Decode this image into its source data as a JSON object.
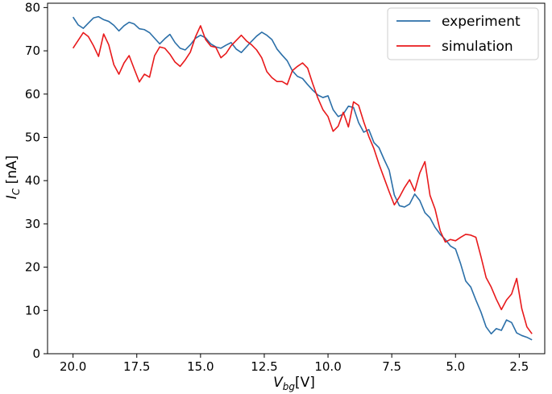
{
  "chart_data": {
    "type": "line",
    "title": "",
    "xlabel": {
      "main": "V",
      "sub": "bg",
      "unit": "[V]"
    },
    "ylabel": {
      "main": "I",
      "sub": "C",
      "unit": " [nA]"
    },
    "xlim": [
      21.0,
      1.5
    ],
    "ylim": [
      0,
      81
    ],
    "x_reversed": true,
    "x_ticks": [
      20.0,
      17.5,
      15.0,
      12.5,
      10.0,
      7.5,
      5.0,
      2.5
    ],
    "x_tick_labels": [
      "20.0",
      "17.5",
      "15.0",
      "12.5",
      "10.0",
      "7.5",
      "5.0",
      "2.5"
    ],
    "y_ticks": [
      0,
      10,
      20,
      30,
      40,
      50,
      60,
      70,
      80
    ],
    "y_tick_labels": [
      "0",
      "10",
      "20",
      "30",
      "40",
      "50",
      "60",
      "70",
      "80"
    ],
    "grid": false,
    "legend_position": "top-right",
    "series": [
      {
        "name": "experiment",
        "color": "#2b6fa8",
        "points": [
          [
            20.0,
            77.8
          ],
          [
            19.8,
            76.0
          ],
          [
            19.6,
            75.2
          ],
          [
            19.4,
            76.4
          ],
          [
            19.2,
            77.6
          ],
          [
            19.0,
            77.9
          ],
          [
            18.8,
            77.2
          ],
          [
            18.6,
            76.8
          ],
          [
            18.4,
            75.9
          ],
          [
            18.2,
            74.6
          ],
          [
            18.0,
            75.8
          ],
          [
            17.8,
            76.6
          ],
          [
            17.6,
            76.2
          ],
          [
            17.4,
            75.1
          ],
          [
            17.2,
            74.9
          ],
          [
            17.0,
            74.2
          ],
          [
            16.8,
            72.9
          ],
          [
            16.6,
            71.6
          ],
          [
            16.4,
            72.8
          ],
          [
            16.2,
            73.8
          ],
          [
            16.0,
            71.9
          ],
          [
            15.8,
            70.6
          ],
          [
            15.6,
            70.2
          ],
          [
            15.4,
            71.4
          ],
          [
            15.2,
            72.9
          ],
          [
            15.0,
            73.6
          ],
          [
            14.8,
            73.0
          ],
          [
            14.6,
            71.6
          ],
          [
            14.4,
            70.9
          ],
          [
            14.2,
            70.6
          ],
          [
            14.0,
            71.3
          ],
          [
            13.8,
            71.9
          ],
          [
            13.6,
            70.4
          ],
          [
            13.4,
            69.6
          ],
          [
            13.2,
            70.9
          ],
          [
            13.0,
            72.2
          ],
          [
            12.8,
            73.4
          ],
          [
            12.6,
            74.3
          ],
          [
            12.4,
            73.6
          ],
          [
            12.2,
            72.6
          ],
          [
            12.0,
            70.4
          ],
          [
            11.8,
            69.0
          ],
          [
            11.6,
            67.7
          ],
          [
            11.4,
            65.4
          ],
          [
            11.2,
            64.1
          ],
          [
            11.0,
            63.6
          ],
          [
            10.8,
            62.2
          ],
          [
            10.6,
            60.9
          ],
          [
            10.4,
            59.8
          ],
          [
            10.2,
            59.2
          ],
          [
            10.0,
            59.6
          ],
          [
            9.8,
            56.4
          ],
          [
            9.6,
            54.8
          ],
          [
            9.4,
            55.4
          ],
          [
            9.2,
            57.2
          ],
          [
            9.0,
            56.9
          ],
          [
            8.8,
            53.4
          ],
          [
            8.6,
            51.2
          ],
          [
            8.4,
            51.8
          ],
          [
            8.2,
            48.8
          ],
          [
            8.0,
            47.6
          ],
          [
            7.8,
            44.9
          ],
          [
            7.6,
            42.4
          ],
          [
            7.4,
            36.7
          ],
          [
            7.2,
            34.2
          ],
          [
            7.0,
            33.9
          ],
          [
            6.8,
            34.6
          ],
          [
            6.6,
            36.9
          ],
          [
            6.4,
            35.4
          ],
          [
            6.2,
            32.6
          ],
          [
            6.0,
            31.4
          ],
          [
            5.8,
            29.2
          ],
          [
            5.6,
            27.6
          ],
          [
            5.4,
            26.4
          ],
          [
            5.2,
            24.9
          ],
          [
            5.0,
            24.2
          ],
          [
            4.8,
            20.8
          ],
          [
            4.6,
            16.8
          ],
          [
            4.4,
            15.4
          ],
          [
            4.2,
            12.4
          ],
          [
            4.0,
            9.6
          ],
          [
            3.8,
            6.2
          ],
          [
            3.6,
            4.6
          ],
          [
            3.4,
            5.8
          ],
          [
            3.2,
            5.4
          ],
          [
            3.0,
            7.8
          ],
          [
            2.8,
            7.2
          ],
          [
            2.6,
            4.8
          ],
          [
            2.4,
            4.2
          ],
          [
            2.2,
            3.8
          ],
          [
            2.0,
            3.2
          ]
        ]
      },
      {
        "name": "simulation",
        "color": "#e8191b",
        "points": [
          [
            20.0,
            70.6
          ],
          [
            19.8,
            72.4
          ],
          [
            19.6,
            74.2
          ],
          [
            19.4,
            73.3
          ],
          [
            19.2,
            71.2
          ],
          [
            19.0,
            68.7
          ],
          [
            18.8,
            73.9
          ],
          [
            18.6,
            71.4
          ],
          [
            18.4,
            66.8
          ],
          [
            18.2,
            64.6
          ],
          [
            18.0,
            67.2
          ],
          [
            17.8,
            68.9
          ],
          [
            17.6,
            65.8
          ],
          [
            17.4,
            62.8
          ],
          [
            17.2,
            64.6
          ],
          [
            17.0,
            63.9
          ],
          [
            16.8,
            68.9
          ],
          [
            16.6,
            70.9
          ],
          [
            16.4,
            70.6
          ],
          [
            16.2,
            69.2
          ],
          [
            16.0,
            67.4
          ],
          [
            15.8,
            66.4
          ],
          [
            15.6,
            67.9
          ],
          [
            15.4,
            69.7
          ],
          [
            15.2,
            73.2
          ],
          [
            15.0,
            75.8
          ],
          [
            14.8,
            72.6
          ],
          [
            14.6,
            71.1
          ],
          [
            14.4,
            70.8
          ],
          [
            14.2,
            68.4
          ],
          [
            14.0,
            69.4
          ],
          [
            13.8,
            71.2
          ],
          [
            13.6,
            72.4
          ],
          [
            13.4,
            73.6
          ],
          [
            13.2,
            72.3
          ],
          [
            13.0,
            71.4
          ],
          [
            12.8,
            70.2
          ],
          [
            12.6,
            68.4
          ],
          [
            12.4,
            65.2
          ],
          [
            12.2,
            63.8
          ],
          [
            12.0,
            62.9
          ],
          [
            11.8,
            62.9
          ],
          [
            11.6,
            62.2
          ],
          [
            11.4,
            65.4
          ],
          [
            11.2,
            66.4
          ],
          [
            11.0,
            67.2
          ],
          [
            10.8,
            66.0
          ],
          [
            10.6,
            62.4
          ],
          [
            10.4,
            59.1
          ],
          [
            10.2,
            56.4
          ],
          [
            10.0,
            54.8
          ],
          [
            9.8,
            51.4
          ],
          [
            9.6,
            52.6
          ],
          [
            9.4,
            55.8
          ],
          [
            9.2,
            52.4
          ],
          [
            9.0,
            58.2
          ],
          [
            8.8,
            57.4
          ],
          [
            8.6,
            53.6
          ],
          [
            8.4,
            50.2
          ],
          [
            8.2,
            47.4
          ],
          [
            8.0,
            43.8
          ],
          [
            7.8,
            40.6
          ],
          [
            7.6,
            37.4
          ],
          [
            7.4,
            34.4
          ],
          [
            7.2,
            36.2
          ],
          [
            7.0,
            38.4
          ],
          [
            6.8,
            40.2
          ],
          [
            6.6,
            37.6
          ],
          [
            6.4,
            41.8
          ],
          [
            6.2,
            44.4
          ],
          [
            6.0,
            36.6
          ],
          [
            5.8,
            33.4
          ],
          [
            5.6,
            28.4
          ],
          [
            5.4,
            25.8
          ],
          [
            5.2,
            26.4
          ],
          [
            5.0,
            26.1
          ],
          [
            4.8,
            26.9
          ],
          [
            4.6,
            27.6
          ],
          [
            4.4,
            27.4
          ],
          [
            4.2,
            26.9
          ],
          [
            4.0,
            22.4
          ],
          [
            3.8,
            17.6
          ],
          [
            3.6,
            15.4
          ],
          [
            3.4,
            12.6
          ],
          [
            3.2,
            10.2
          ],
          [
            3.0,
            12.4
          ],
          [
            2.8,
            13.8
          ],
          [
            2.6,
            17.4
          ],
          [
            2.4,
            10.4
          ],
          [
            2.2,
            6.2
          ],
          [
            2.0,
            4.6
          ]
        ]
      }
    ]
  }
}
